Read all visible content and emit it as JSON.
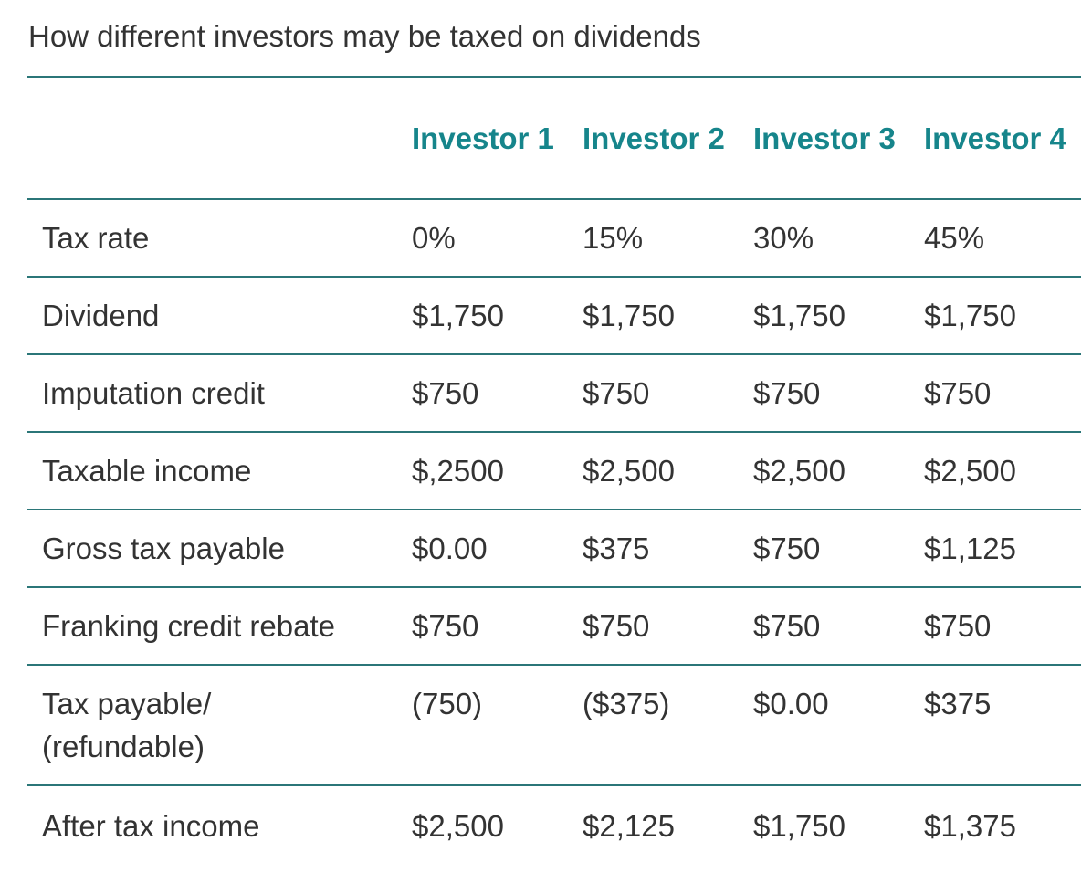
{
  "caption": "How different investors may be taxed on dividends",
  "table": {
    "columns": [
      "",
      "Investor 1",
      "Investor 2",
      "Investor 3",
      "Investor 4"
    ],
    "rows": [
      {
        "label": "Tax rate",
        "values": [
          "0%",
          "15%",
          "30%",
          "45%"
        ]
      },
      {
        "label": "Dividend",
        "values": [
          "$1,750",
          "$1,750",
          "$1,750",
          "$1,750"
        ]
      },
      {
        "label": "Imputation credit",
        "values": [
          "$750",
          "$750",
          "$750",
          "$750"
        ]
      },
      {
        "label": "Taxable income",
        "values": [
          "$,2500",
          "$2,500",
          "$2,500",
          "$2,500"
        ]
      },
      {
        "label": "Gross tax payable",
        "values": [
          "$0.00",
          "$375",
          "$750",
          "$1,125"
        ]
      },
      {
        "label": "Franking credit rebate",
        "values": [
          "$750",
          "$750",
          "$750",
          "$750"
        ]
      },
      {
        "label": "Tax payable/ (refundable)",
        "values": [
          "(750)",
          "($375)",
          "$0.00",
          "$375"
        ]
      },
      {
        "label": "After tax income",
        "values": [
          "$2,500",
          "$2,125",
          "$1,750",
          "$1,375"
        ]
      }
    ]
  },
  "colors": {
    "header_text": "#16858b",
    "rule": "#2b7678",
    "body_text": "#333333"
  }
}
